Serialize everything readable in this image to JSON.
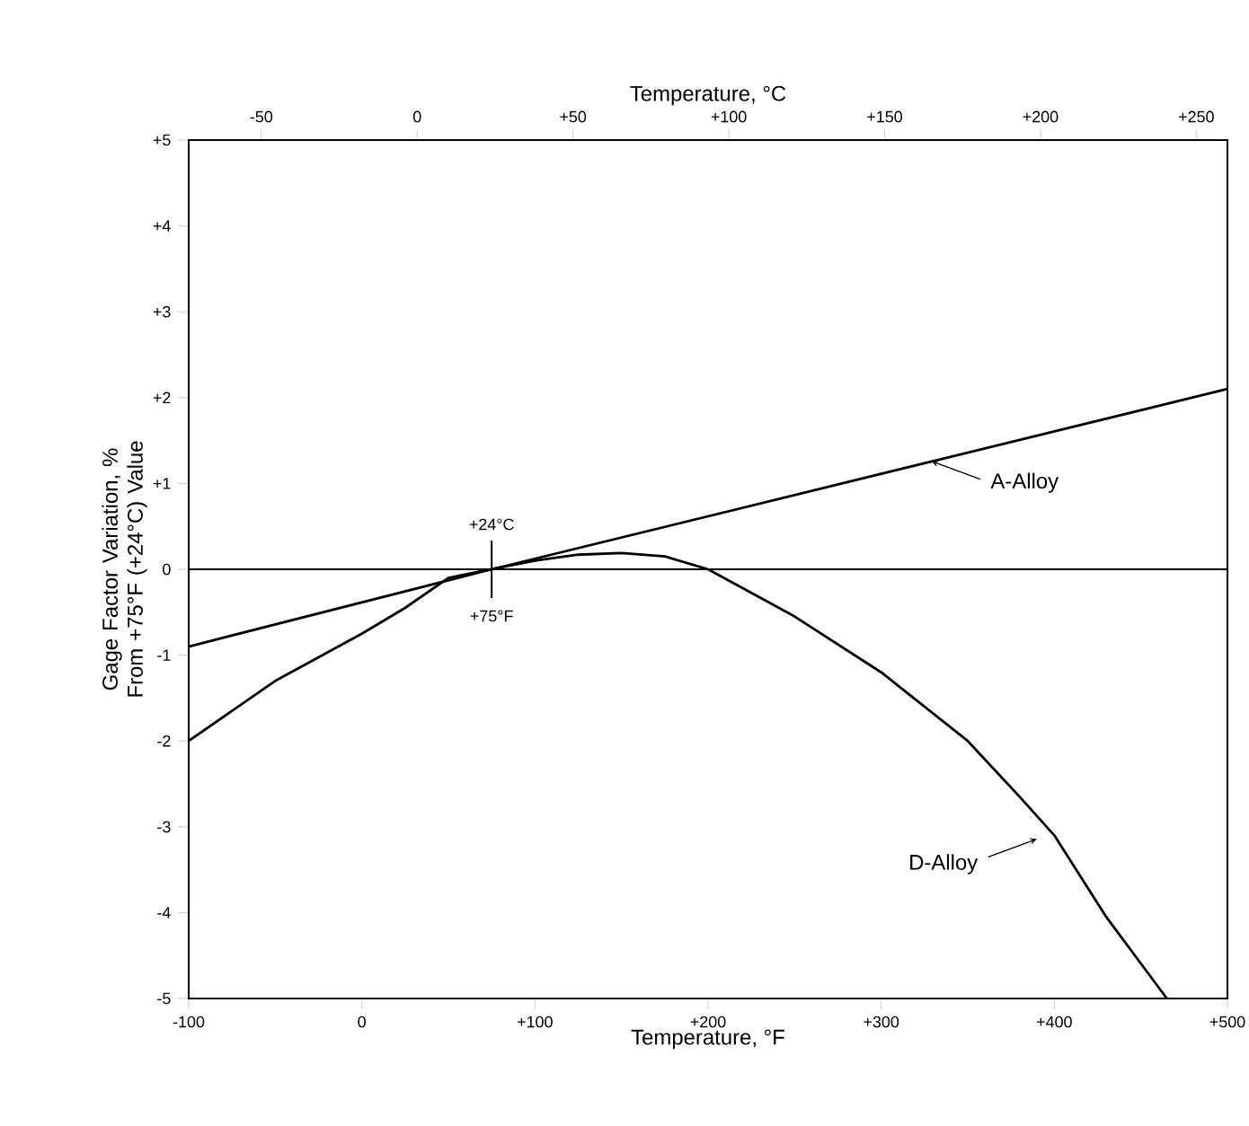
{
  "chart_data": {
    "type": "line",
    "xlabel": "Temperature, °F",
    "x2label": "Temperature, °C",
    "ylabel": "Gage Factor Variation, % From +75°F (+24°C) Value",
    "xlim": [
      -100,
      500
    ],
    "xticks": [
      -100,
      0,
      {
        "value": 100,
        "label": "+100"
      },
      {
        "value": 200,
        "label": "+200"
      },
      {
        "value": 300,
        "label": "+300"
      },
      {
        "value": 400,
        "label": "+400"
      },
      {
        "value": 500,
        "label": "+500"
      }
    ],
    "x2lim": [
      -73.3,
      260
    ],
    "x2ticks": [
      -50,
      0,
      {
        "value": 50,
        "label": "+50"
      },
      {
        "value": 100,
        "label": "+100"
      },
      {
        "value": 150,
        "label": "+150"
      },
      {
        "value": 200,
        "label": "+200"
      },
      {
        "value": 250,
        "label": "+250"
      }
    ],
    "ylim": [
      -5,
      5
    ],
    "yticks": [
      -5,
      -4,
      -3,
      -2,
      -1,
      0,
      {
        "value": 1,
        "label": "+1"
      },
      {
        "value": 2,
        "label": "+2"
      },
      {
        "value": 3,
        "label": "+3"
      },
      {
        "value": 4,
        "label": "+4"
      },
      {
        "value": 5,
        "label": "+5"
      }
    ],
    "grid": false,
    "marker": "none",
    "line_style": "solid",
    "ref_lines": [
      {
        "axis": "y",
        "value": 0,
        "color": "#000000"
      }
    ],
    "series": [
      {
        "color": "#000000",
        "x": [
          -100,
          75,
          500
        ],
        "values": [
          -0.9,
          0,
          2.1
        ]
      },
      {
        "color": "#000000",
        "x": [
          -100,
          -50,
          0,
          25,
          50,
          75,
          100,
          125,
          150,
          175,
          200,
          250,
          300,
          350,
          380,
          400,
          430,
          465
        ],
        "values": [
          -2.0,
          -1.3,
          -0.75,
          -0.45,
          -0.1,
          0,
          0.1,
          0.17,
          0.19,
          0.15,
          0,
          -0.55,
          -1.2,
          -2.0,
          -2.65,
          -3.1,
          -4.05,
          -5.0
        ]
      }
    ],
    "annotations": [
      {
        "text": "+24°C",
        "x": 75,
        "y": 0
      },
      {
        "text": "+75°F",
        "x": 75,
        "y": 0
      },
      {
        "text": "A-Alloy",
        "x": 326,
        "y": 1.3
      },
      {
        "text": "D-Alloy",
        "x": 393,
        "y": -3.1
      }
    ]
  }
}
